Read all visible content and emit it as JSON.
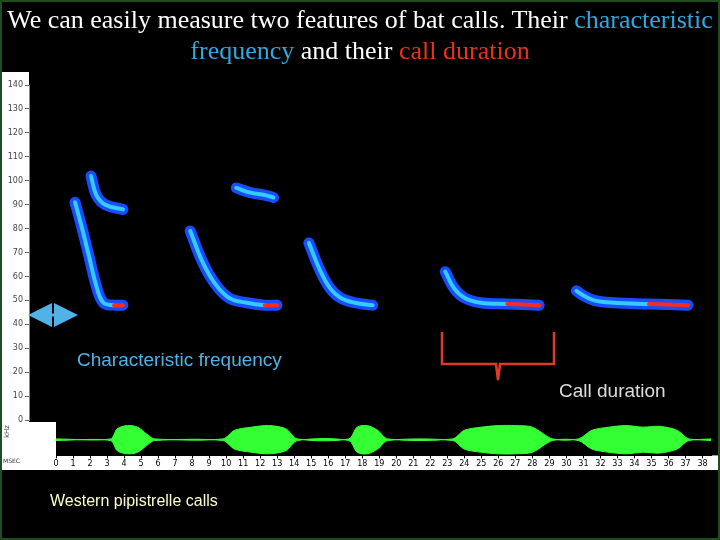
{
  "chart_data": [
    {
      "type": "spectrogram",
      "title": [
        {
          "text": "We can easily measure two features of bat calls. Their ",
          "color": "#ffffff"
        },
        {
          "text": "characteristic frequency",
          "color": "#2fa8e0"
        },
        {
          "text": " and their ",
          "color": "#ffffff"
        },
        {
          "text": "call duration",
          "color": "#e8321e"
        }
      ],
      "y_label": "kHz",
      "annotations": [
        {
          "text": "Characteristic frequency",
          "color": "#4fb3e8"
        },
        {
          "text": "Call duration",
          "color": "#dddddd"
        },
        {
          "text": "Western pipistrelle calls",
          "color": "#ffffcc"
        }
      ],
      "color": "#1a4cff",
      "series": [
        {
          "x": [
            2.6,
            3.0,
            3.4,
            3.8,
            4.2,
            4.8,
            5.3
          ],
          "values": [
            91,
            80,
            68,
            56,
            49,
            48,
            48
          ]
        },
        {
          "x": [
            3.5,
            3.8,
            4.3,
            5.3
          ],
          "values": [
            102,
            94,
            90,
            88
          ]
        },
        {
          "x": [
            9.1,
            9.8,
            10.5,
            11.3,
            12.3,
            13.3,
            14.0
          ],
          "values": [
            79,
            66,
            57,
            51,
            49,
            48,
            48
          ]
        },
        {
          "x": [
            11.7,
            12.5,
            13.3,
            13.8
          ],
          "values": [
            97,
            95,
            94,
            93
          ]
        },
        {
          "x": [
            15.8,
            16.4,
            17.0,
            17.6,
            18.4,
            19.4
          ],
          "values": [
            74,
            63,
            55,
            51,
            49,
            48
          ]
        },
        {
          "x": [
            23.5,
            24.0,
            24.6,
            25.5,
            27.0,
            28.8
          ],
          "values": [
            62,
            55,
            51,
            49,
            48.5,
            48
          ]
        },
        {
          "x": [
            30.9,
            31.3,
            31.9,
            33.0,
            35.0,
            37.2
          ],
          "values": [
            54,
            52,
            50,
            49,
            48.5,
            48
          ]
        }
      ],
      "xlim": [
        0,
        38.5
      ],
      "ylim": [
        0,
        140
      ],
      "yticks": [
        0,
        10,
        20,
        30,
        40,
        50,
        60,
        70,
        80,
        90,
        100,
        110,
        120,
        130,
        140
      ],
      "grid": false,
      "tick_labels": "y"
    },
    {
      "type": "oscillogram",
      "x_label": "MSEC",
      "color": "#33ff33",
      "x": [
        0,
        3.2,
        3.6,
        4.2,
        4.8,
        5.4,
        5.8,
        9.8,
        10.5,
        11.5,
        12.5,
        13.5,
        14.2,
        17.2,
        17.7,
        18.3,
        18.9,
        19.5,
        23.3,
        24.0,
        25.0,
        26.0,
        27.0,
        28.0,
        29.2,
        30.7,
        31.5,
        32.5,
        33.5,
        34.5,
        35.5,
        36.5,
        37.2,
        38.5
      ],
      "upper": [
        0.05,
        0.05,
        0.7,
        0.9,
        0.8,
        0.3,
        0.05,
        0.05,
        0.6,
        0.8,
        0.9,
        0.7,
        0.05,
        0.05,
        0.8,
        0.9,
        0.6,
        0.05,
        0.05,
        0.6,
        0.8,
        0.9,
        0.9,
        0.8,
        0.05,
        0.05,
        0.6,
        0.8,
        0.9,
        0.8,
        0.85,
        0.6,
        0.05,
        0.05
      ],
      "lower": [
        -0.05,
        -0.05,
        -0.7,
        -0.9,
        -0.8,
        -0.3,
        -0.05,
        -0.05,
        -0.6,
        -0.8,
        -0.9,
        -0.7,
        -0.05,
        -0.05,
        -0.8,
        -0.9,
        -0.6,
        -0.05,
        -0.05,
        -0.6,
        -0.8,
        -0.9,
        -0.9,
        -0.8,
        -0.05,
        -0.05,
        -0.6,
        -0.8,
        -0.9,
        -0.8,
        -0.85,
        -0.6,
        -0.05,
        -0.05
      ],
      "xlim": [
        0,
        38.5
      ],
      "xticks": [
        0,
        1,
        2,
        3,
        4,
        5,
        6,
        7,
        8,
        9,
        10,
        11,
        12,
        13,
        14,
        15,
        16,
        17,
        18,
        19,
        20,
        21,
        22,
        23,
        24,
        25,
        26,
        27,
        28,
        29,
        30,
        31,
        32,
        33,
        34,
        35,
        36,
        37,
        38
      ],
      "ylim": [
        -1,
        1
      ],
      "grid": false,
      "tick_labels": "x"
    }
  ]
}
